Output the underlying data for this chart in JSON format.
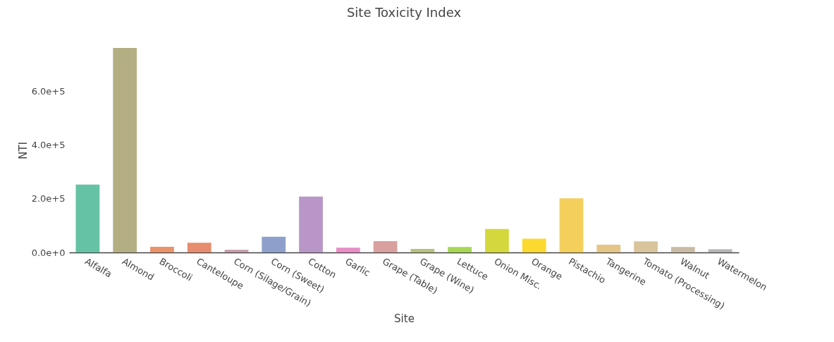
{
  "chart_data": {
    "type": "bar",
    "title": "Site Toxicity Index",
    "xlabel": "Site",
    "ylabel": "NTI",
    "categories": [
      "Alfalfa",
      "Almond",
      "Broccoli",
      "Canteloupe",
      "Corn (Silage/Grain)",
      "Corn (Sweet)",
      "Cotton",
      "Garlic",
      "Grape (Table)",
      "Grape (Wine)",
      "Lettuce",
      "Onion Misc.",
      "Orange",
      "Pistachio",
      "Tangerine",
      "Tomato (Processing)",
      "Walnut",
      "Watermelon"
    ],
    "values": [
      252000,
      760000,
      21000,
      36000,
      10000,
      58000,
      208000,
      18000,
      42000,
      13000,
      20000,
      87000,
      51000,
      201000,
      29000,
      41000,
      20000,
      12000
    ],
    "colors": [
      "#66c2a5",
      "#b3af83",
      "#e8936a",
      "#e78c6e",
      "#c29ca8",
      "#8da0cb",
      "#b996c8",
      "#e88dc5",
      "#d9a0a0",
      "#b4c27e",
      "#a6d854",
      "#d4d83c",
      "#fcd92e",
      "#f5cf5b",
      "#e5c585",
      "#d9c49b",
      "#c9bba3",
      "#b3b3b3"
    ],
    "ylim": [
      0,
      760000
    ],
    "yticks": [
      {
        "value": 0,
        "label": "0.0e+0"
      },
      {
        "value": 200000,
        "label": "2.0e+5"
      },
      {
        "value": 400000,
        "label": "4.0e+5"
      },
      {
        "value": 600000,
        "label": "6.0e+5"
      }
    ],
    "grid": false,
    "legend": false
  }
}
